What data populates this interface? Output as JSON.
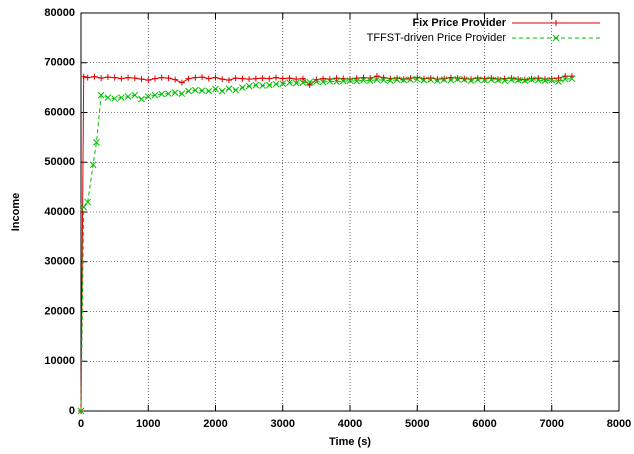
{
  "chart_data": {
    "type": "line",
    "xlabel": "Time (s)",
    "ylabel": "Income",
    "xlim": [
      0,
      8000
    ],
    "xticks": [
      0,
      1000,
      2000,
      3000,
      4000,
      5000,
      6000,
      7000,
      8000
    ],
    "ylim": [
      0,
      80000
    ],
    "yticks": [
      0,
      10000,
      20000,
      30000,
      40000,
      50000,
      60000,
      70000,
      80000
    ],
    "grid": true,
    "legend": "upper right",
    "series": [
      {
        "name": "Fix Price Provider",
        "color": "#e00000",
        "marker": "+",
        "dash": false,
        "x": [
          0,
          40,
          100,
          200,
          300,
          400,
          500,
          600,
          700,
          800,
          900,
          1000,
          1100,
          1200,
          1300,
          1400,
          1500,
          1600,
          1700,
          1800,
          1900,
          2000,
          2100,
          2200,
          2300,
          2400,
          2500,
          2600,
          2700,
          2800,
          2900,
          3000,
          3100,
          3200,
          3300,
          3400,
          3500,
          3600,
          3700,
          3800,
          3900,
          4000,
          4100,
          4200,
          4300,
          4400,
          4500,
          4600,
          4700,
          4800,
          4900,
          5000,
          5100,
          5200,
          5300,
          5400,
          5500,
          5600,
          5700,
          5800,
          5900,
          6000,
          6100,
          6200,
          6300,
          6400,
          6500,
          6600,
          6700,
          6800,
          6900,
          7000,
          7100,
          7200,
          7300
        ],
        "values": [
          0,
          67200,
          67000,
          67200,
          66900,
          67100,
          67000,
          66800,
          67000,
          66900,
          66700,
          66500,
          66800,
          67000,
          66900,
          66600,
          66000,
          66800,
          67000,
          67100,
          66800,
          67000,
          66700,
          66500,
          66900,
          66800,
          66700,
          66800,
          66900,
          66800,
          67000,
          66800,
          66900,
          66700,
          66800,
          65500,
          66600,
          66800,
          66700,
          66900,
          66800,
          66700,
          66900,
          67000,
          66900,
          67300,
          67000,
          66800,
          66900,
          66700,
          66900,
          67000,
          66800,
          66900,
          66700,
          66800,
          67000,
          66900,
          66800,
          66700,
          66900,
          66800,
          66900,
          66700,
          66800,
          66900,
          66700,
          66600,
          66800,
          66900,
          66700,
          66800,
          66900,
          67300,
          67300
        ]
      },
      {
        "name": "TFFST-driven Price Provider",
        "color": "#00c000",
        "marker": "x",
        "dash": true,
        "x": [
          0,
          40,
          100,
          180,
          230,
          300,
          400,
          500,
          600,
          700,
          800,
          900,
          1000,
          1100,
          1200,
          1300,
          1400,
          1500,
          1600,
          1700,
          1800,
          1900,
          2000,
          2100,
          2200,
          2300,
          2400,
          2500,
          2600,
          2700,
          2800,
          2900,
          3000,
          3100,
          3200,
          3300,
          3400,
          3500,
          3600,
          3700,
          3800,
          3900,
          4000,
          4100,
          4200,
          4300,
          4400,
          4500,
          4600,
          4700,
          4800,
          4900,
          5000,
          5100,
          5200,
          5300,
          5400,
          5500,
          5600,
          5700,
          5800,
          5900,
          6000,
          6100,
          6200,
          6300,
          6400,
          6500,
          6600,
          6700,
          6800,
          6900,
          7000,
          7100,
          7200,
          7300
        ],
        "values": [
          0,
          41000,
          42000,
          49500,
          54000,
          63500,
          63000,
          62800,
          63000,
          63200,
          63500,
          62700,
          63200,
          63500,
          63700,
          63800,
          64000,
          63800,
          64300,
          64500,
          64400,
          64300,
          64700,
          64300,
          64800,
          64500,
          65000,
          65300,
          65500,
          65400,
          65500,
          65700,
          65800,
          66000,
          65900,
          66000,
          66100,
          66200,
          66100,
          66300,
          66200,
          66300,
          66400,
          66300,
          66500,
          66400,
          66600,
          66500,
          66400,
          66600,
          66500,
          66600,
          66700,
          66500,
          66600,
          66400,
          66600,
          66500,
          66700,
          66600,
          66400,
          66600,
          66500,
          66600,
          66500,
          66400,
          66600,
          66500,
          66400,
          66600,
          66500,
          66400,
          66500,
          66200,
          66700,
          66800
        ]
      }
    ]
  }
}
